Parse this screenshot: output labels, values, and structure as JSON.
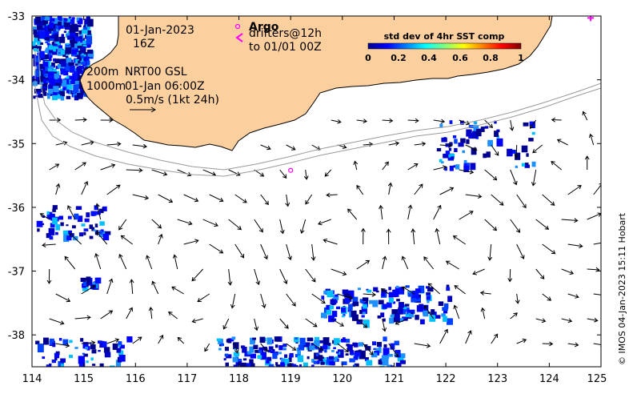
{
  "map": {
    "lon_range": [
      114,
      125
    ],
    "lat_range": [
      -38.5,
      -33
    ],
    "lon_ticks": [
      "114",
      "115",
      "116",
      "117",
      "118",
      "119",
      "120",
      "121",
      "122",
      "123",
      "124",
      "125"
    ],
    "lat_ticks": [
      "-33",
      "-34",
      "-35",
      "-36",
      "-37",
      "-38"
    ],
    "colors": {
      "land": "#fccf9f",
      "coast": "#000000",
      "isobath": "#999999",
      "argo": "#ff00ff",
      "drifter": "#ff00ff",
      "sst_low": "#00008f",
      "sst_mid": "#00ffff",
      "sst_high": "#800000"
    }
  },
  "annotations": {
    "date": "01-Jan-2023",
    "hour": "16Z",
    "isobath_200": "200m",
    "isobath_1000": "1000m",
    "product": "NRT00 GSL",
    "product_time": "01-Jan 06:00Z",
    "scale": "0.5m/s (1kt 24h)"
  },
  "legend": {
    "argo_label": "Argo",
    "drifters_label": "drifters@12h",
    "drifters_sub": "to 01/01 00Z"
  },
  "colorbar": {
    "title": "std dev of 4hr SST comp",
    "ticks": [
      "0",
      "0.2",
      "0.4",
      "0.6",
      "0.8",
      "1"
    ]
  },
  "credit": "© IMOS 04-Jan-2023 15:11 Hobart"
}
